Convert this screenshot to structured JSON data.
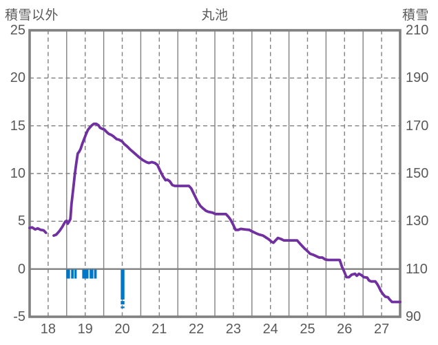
{
  "header": {
    "left_axis_title": "積雪以外",
    "chart_title": "丸池",
    "right_axis_title": "積雪"
  },
  "colors": {
    "line": "#7030A0",
    "event_marks": "#0076C8",
    "grid": "#808080",
    "border": "#808080",
    "zero_line": "#808080",
    "text": "#595959",
    "background": "#ffffff"
  },
  "chart_data": {
    "type": "line",
    "title": "丸池",
    "xlabel": "",
    "ylabel_left": "積雪以外",
    "ylabel_right": "積雪",
    "xlim": [
      17.5,
      27.5
    ],
    "x_ticks": [
      18,
      19,
      20,
      21,
      22,
      23,
      24,
      25,
      26,
      27
    ],
    "left_axis": {
      "lim": [
        -5,
        25
      ],
      "ticks": [
        25,
        20,
        15,
        10,
        5,
        0,
        -5
      ]
    },
    "right_axis": {
      "lim": [
        90,
        210
      ],
      "ticks": [
        210,
        190,
        170,
        150,
        130,
        110,
        90
      ]
    },
    "grid": {
      "h_dashed_at": [
        20,
        15,
        10,
        5
      ],
      "zero_line_at": 0,
      "v_dashed_at": [
        18,
        19,
        20,
        21,
        22,
        23,
        24,
        25,
        26,
        27
      ],
      "v_solid_at": [
        18.5,
        19.5,
        20.5,
        21.5,
        22.5,
        23.5,
        24.5,
        25.5,
        26.5
      ]
    },
    "series": [
      {
        "name": "積雪",
        "color": "#7030A0",
        "segments": [
          [
            [
              17.5,
              4.3
            ],
            [
              17.57,
              4.35
            ],
            [
              17.65,
              4.15
            ],
            [
              17.72,
              4.25
            ],
            [
              17.8,
              4.1
            ],
            [
              17.88,
              4.05
            ],
            [
              17.94,
              3.8
            ]
          ],
          [
            [
              18.15,
              3.5
            ],
            [
              18.22,
              3.6
            ],
            [
              18.3,
              3.95
            ],
            [
              18.38,
              4.4
            ],
            [
              18.46,
              4.95
            ],
            [
              18.5,
              5.05
            ],
            [
              18.53,
              4.75
            ],
            [
              18.57,
              5.0
            ],
            [
              18.6,
              5.25
            ],
            [
              18.63,
              6.8
            ],
            [
              18.68,
              8.5
            ],
            [
              18.72,
              9.9
            ],
            [
              18.76,
              11.1
            ],
            [
              18.8,
              12.1
            ],
            [
              18.84,
              12.3
            ],
            [
              18.88,
              12.6
            ],
            [
              18.92,
              13.1
            ],
            [
              18.97,
              13.6
            ],
            [
              19.02,
              14.1
            ],
            [
              19.07,
              14.55
            ],
            [
              19.12,
              14.8
            ],
            [
              19.18,
              15.05
            ],
            [
              19.23,
              15.2
            ],
            [
              19.3,
              15.2
            ],
            [
              19.36,
              15.05
            ],
            [
              19.4,
              14.8
            ],
            [
              19.45,
              14.7
            ],
            [
              19.52,
              14.6
            ],
            [
              19.58,
              14.35
            ],
            [
              19.64,
              14.15
            ],
            [
              19.7,
              14.05
            ],
            [
              19.76,
              13.9
            ],
            [
              19.85,
              13.6
            ],
            [
              19.91,
              13.55
            ],
            [
              20.0,
              13.35
            ],
            [
              20.05,
              13.1
            ],
            [
              20.13,
              12.85
            ],
            [
              20.22,
              12.5
            ],
            [
              20.31,
              12.2
            ],
            [
              20.44,
              11.75
            ],
            [
              20.56,
              11.4
            ],
            [
              20.65,
              11.2
            ],
            [
              20.72,
              11.1
            ],
            [
              20.8,
              11.2
            ],
            [
              20.88,
              11.1
            ],
            [
              20.95,
              10.9
            ],
            [
              21.02,
              10.3
            ],
            [
              21.1,
              9.7
            ],
            [
              21.17,
              9.3
            ],
            [
              21.22,
              9.35
            ],
            [
              21.28,
              9.2
            ],
            [
              21.35,
              8.8
            ],
            [
              21.42,
              8.7
            ],
            [
              21.8,
              8.7
            ],
            [
              21.86,
              8.45
            ],
            [
              21.93,
              7.9
            ],
            [
              21.98,
              7.5
            ],
            [
              22.04,
              7.0
            ],
            [
              22.11,
              6.6
            ],
            [
              22.18,
              6.35
            ],
            [
              22.26,
              6.1
            ],
            [
              22.32,
              6.0
            ],
            [
              22.44,
              5.9
            ],
            [
              22.52,
              5.75
            ],
            [
              22.8,
              5.75
            ],
            [
              22.86,
              5.5
            ],
            [
              22.92,
              5.2
            ],
            [
              23.0,
              4.6
            ],
            [
              23.06,
              4.1
            ],
            [
              23.13,
              4.1
            ],
            [
              23.2,
              4.2
            ],
            [
              23.3,
              4.15
            ],
            [
              23.43,
              4.1
            ],
            [
              23.5,
              3.95
            ],
            [
              23.61,
              3.75
            ],
            [
              23.7,
              3.6
            ],
            [
              23.8,
              3.5
            ],
            [
              23.88,
              3.3
            ],
            [
              23.96,
              3.1
            ],
            [
              24.03,
              2.85
            ],
            [
              24.08,
              2.75
            ],
            [
              24.14,
              3.0
            ],
            [
              24.2,
              3.25
            ],
            [
              24.28,
              3.15
            ],
            [
              24.36,
              3.0
            ],
            [
              24.72,
              3.0
            ],
            [
              24.8,
              2.65
            ],
            [
              24.86,
              2.4
            ],
            [
              24.92,
              2.15
            ],
            [
              24.98,
              1.95
            ],
            [
              25.07,
              1.6
            ],
            [
              25.15,
              1.5
            ],
            [
              25.26,
              1.3
            ],
            [
              25.32,
              1.2
            ],
            [
              25.4,
              1.2
            ],
            [
              25.48,
              1.0
            ],
            [
              25.55,
              0.95
            ],
            [
              25.87,
              0.95
            ],
            [
              25.93,
              0.25
            ],
            [
              26.0,
              -0.35
            ],
            [
              26.05,
              -0.85
            ],
            [
              26.12,
              -0.85
            ],
            [
              26.19,
              -0.6
            ],
            [
              26.28,
              -0.5
            ],
            [
              26.33,
              -0.7
            ],
            [
              26.39,
              -0.5
            ],
            [
              26.46,
              -0.65
            ],
            [
              26.52,
              -0.85
            ],
            [
              26.61,
              -0.9
            ],
            [
              26.66,
              -1.2
            ],
            [
              26.72,
              -1.3
            ],
            [
              26.83,
              -1.3
            ],
            [
              26.88,
              -1.55
            ],
            [
              26.93,
              -1.9
            ],
            [
              26.98,
              -2.3
            ],
            [
              27.04,
              -2.65
            ],
            [
              27.1,
              -2.9
            ],
            [
              27.17,
              -2.95
            ],
            [
              27.22,
              -3.2
            ],
            [
              27.28,
              -3.45
            ],
            [
              27.5,
              -3.45
            ]
          ]
        ]
      }
    ],
    "event_marks": {
      "name": "積雪以外",
      "color": "#0076C8",
      "bars": [
        {
          "x0": 18.49,
          "x1": 18.59,
          "y0": -0.05,
          "y1": -1.0,
          "style": "solid"
        },
        {
          "x0": 18.62,
          "x1": 18.69,
          "y0": -0.05,
          "y1": -1.0,
          "style": "solid"
        },
        {
          "x0": 18.71,
          "x1": 18.77,
          "y0": -0.05,
          "y1": -1.0,
          "style": "solid"
        },
        {
          "x0": 18.92,
          "x1": 19.09,
          "y0": -0.05,
          "y1": -1.0,
          "style": "solid"
        },
        {
          "x0": 19.12,
          "x1": 19.22,
          "y0": -0.05,
          "y1": -1.0,
          "style": "solid"
        },
        {
          "x0": 19.24,
          "x1": 19.31,
          "y0": -0.05,
          "y1": -1.0,
          "style": "solid"
        },
        {
          "x0": 19.96,
          "x1": 20.06,
          "y0": -0.05,
          "y1": -3.2,
          "style": "solid"
        },
        {
          "x0": 19.96,
          "x1": 20.06,
          "y0": -3.35,
          "y1": -4.1,
          "style": "dashed"
        }
      ]
    }
  }
}
